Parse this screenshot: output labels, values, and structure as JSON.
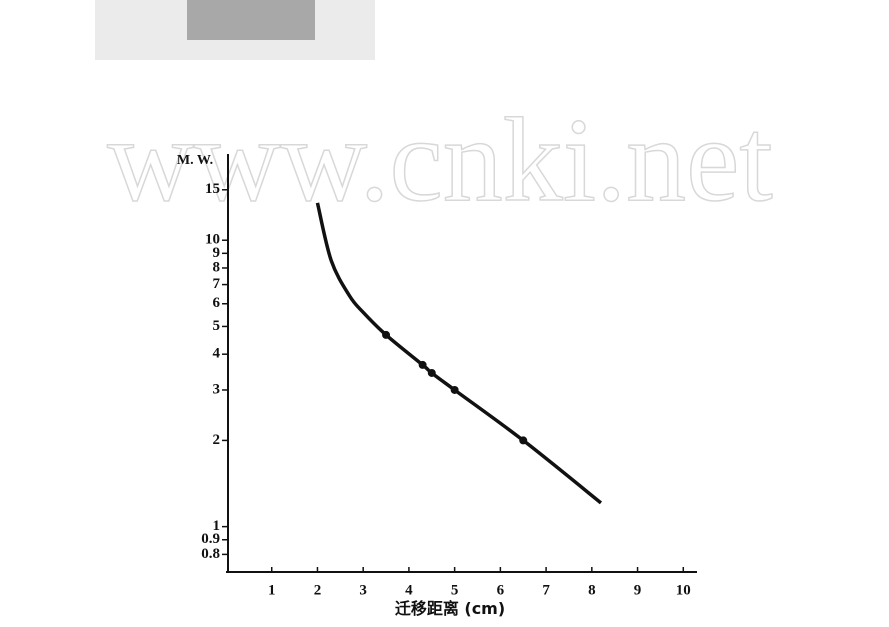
{
  "chart_data": {
    "type": "line",
    "watermark": "www.cnki.net",
    "ylabel": "M. W.",
    "xlabel": "迁移距离 (cm)",
    "yscale": "log",
    "xlim": [
      0,
      10.3
    ],
    "xticks": [
      1,
      2,
      3,
      4,
      5,
      6,
      7,
      8,
      9,
      10
    ],
    "ylim": [
      0.7,
      20
    ],
    "yticks": [
      0.8,
      0.9,
      1,
      2,
      3,
      4,
      5,
      6,
      7,
      8,
      9,
      10,
      15
    ],
    "series": [
      {
        "color": "#111111",
        "marker": false,
        "x": [
          2.0,
          2.3,
          2.7,
          3.0,
          3.5,
          4.3,
          4.5,
          5.0,
          6.5,
          8.2
        ],
        "values": [
          13.5,
          8.5,
          6.4,
          5.6,
          4.67,
          3.67,
          3.44,
          3.0,
          2.0,
          1.21
        ]
      },
      {
        "color": "#111111",
        "marker": true,
        "x": [
          3.5,
          4.3,
          4.5,
          5.0,
          6.5
        ],
        "values": [
          4.67,
          3.67,
          3.44,
          3.0,
          2.0
        ]
      }
    ]
  }
}
